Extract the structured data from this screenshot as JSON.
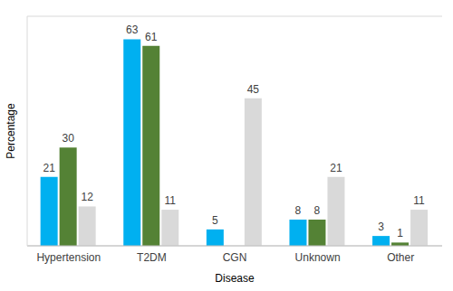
{
  "chart_data": {
    "type": "bar",
    "x_label": "Disease",
    "y_label": "Percentage",
    "categories": [
      "Hypertension",
      "T2DM",
      "CGN",
      "Unknown",
      "Other"
    ],
    "series": [
      {
        "color": "#00b0f0",
        "values": [
          21,
          63,
          5,
          8,
          3
        ]
      },
      {
        "color": "#548235",
        "values": [
          30,
          61,
          0,
          8,
          1
        ]
      },
      {
        "color": "#d9d9d9",
        "values": [
          12,
          11,
          45,
          21,
          11
        ]
      }
    ],
    "ylim": [
      0,
      70
    ],
    "yticks": [
      0,
      10,
      20,
      30,
      40,
      50,
      60,
      70
    ],
    "grid": true,
    "data_labels": true,
    "tick_labels": "x"
  }
}
